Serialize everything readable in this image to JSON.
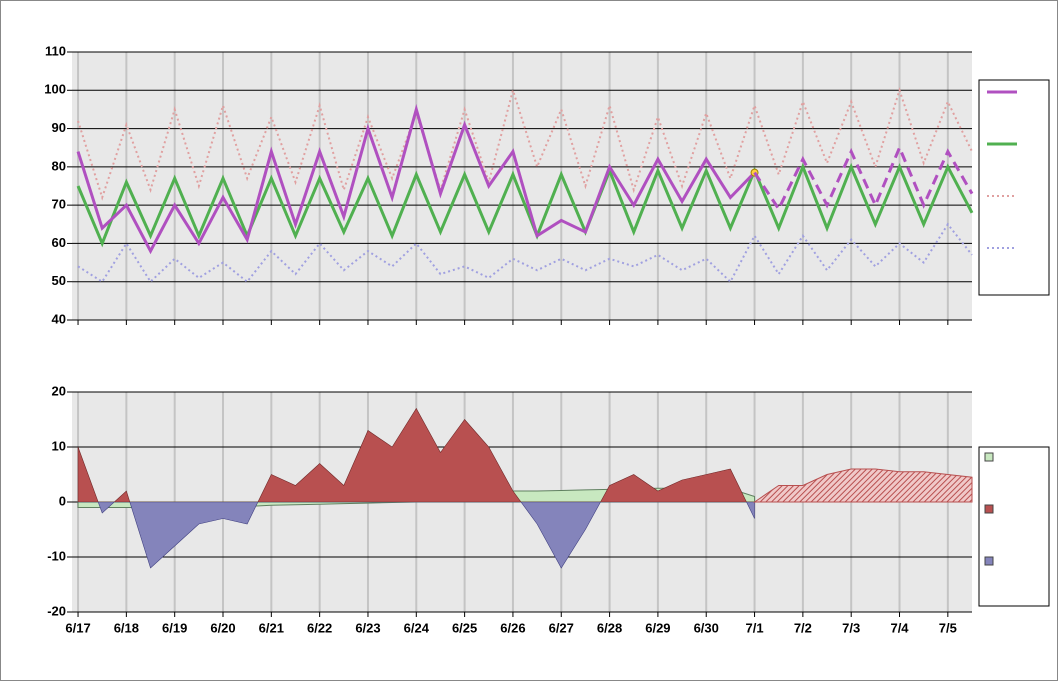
{
  "chart_data": [
    {
      "type": "line",
      "x": [
        0,
        0.5,
        1,
        1.5,
        2,
        2.5,
        3,
        3.5,
        4,
        4.5,
        5,
        5.5,
        6,
        6.5,
        7,
        7.5,
        8,
        8.5,
        9,
        9.5,
        10,
        10.5,
        11,
        11.5,
        12,
        12.5,
        13,
        13.5,
        14,
        14.5,
        15,
        15.5,
        16,
        16.5,
        17,
        17.5,
        18,
        18.5
      ],
      "xlim": [
        -0.125,
        18.5
      ],
      "xticks": [
        0,
        1,
        2,
        3,
        4,
        5,
        6,
        7,
        8,
        9,
        10,
        11,
        12,
        13,
        14,
        15,
        16,
        17,
        18
      ],
      "ylim": [
        40,
        110
      ],
      "yticks": [
        40,
        50,
        60,
        70,
        80,
        90,
        100,
        110
      ],
      "grid": true,
      "series": [
        {
          "color": "#b050c0",
          "style": "solid",
          "width": 3,
          "marker_color": "#ffd040",
          "values": [
            84,
            64,
            70,
            58,
            70,
            60,
            72,
            61,
            84,
            65,
            84,
            67,
            90,
            72,
            95,
            73,
            91,
            75,
            84,
            62,
            66,
            63,
            80,
            70,
            82,
            71,
            82,
            72,
            78.5,
            null,
            null,
            null,
            null,
            null,
            null,
            null,
            null,
            null
          ]
        },
        {
          "color": "#b050c0",
          "style": "dashed",
          "width": 3,
          "values": [
            null,
            null,
            null,
            null,
            null,
            null,
            null,
            null,
            null,
            null,
            null,
            null,
            null,
            null,
            null,
            null,
            null,
            null,
            null,
            null,
            null,
            null,
            null,
            null,
            null,
            null,
            null,
            null,
            78.5,
            69,
            82,
            70,
            84,
            70,
            85,
            70,
            84,
            73
          ]
        },
        {
          "color": "#50b050",
          "style": "solid",
          "width": 3,
          "values": [
            75,
            60,
            76,
            62,
            77,
            62,
            77,
            62,
            77,
            62,
            77,
            63,
            77,
            62,
            78,
            63,
            78,
            63,
            78,
            62,
            78,
            63,
            79,
            63,
            79,
            64,
            79,
            64,
            79,
            64,
            80,
            64,
            80,
            65,
            80,
            65,
            80,
            68
          ]
        },
        {
          "color": "#e0a0a0",
          "style": "dotted",
          "width": 2,
          "values": [
            92,
            72,
            91,
            74,
            95,
            75,
            96,
            77,
            93,
            76,
            96,
            74,
            93,
            77,
            94,
            74,
            95,
            76,
            100,
            80,
            95,
            75,
            96,
            74,
            93,
            75,
            94,
            77,
            96,
            78,
            97,
            81,
            97,
            80,
            100,
            81,
            97,
            84
          ]
        },
        {
          "color": "#a0a0e0",
          "style": "dotted",
          "width": 2,
          "values": [
            54,
            50,
            60,
            50,
            56,
            51,
            55,
            50,
            58,
            52,
            60,
            53,
            58,
            54,
            60,
            52,
            54,
            51,
            56,
            53,
            56,
            53,
            56,
            54,
            57,
            53,
            56,
            50,
            62,
            52,
            62,
            53,
            61,
            54,
            60,
            55,
            65,
            57
          ]
        }
      ]
    },
    {
      "type": "area",
      "x": [
        0,
        0.5,
        1,
        1.5,
        2,
        2.5,
        3,
        3.5,
        4,
        4.5,
        5,
        5.5,
        6,
        6.5,
        7,
        7.5,
        8,
        8.5,
        9,
        9.5,
        10,
        10.5,
        11,
        11.5,
        12,
        12.5,
        13,
        13.5,
        14,
        14.5,
        15,
        15.5,
        16,
        16.5,
        17,
        17.5,
        18,
        18.5
      ],
      "xlim": [
        -0.125,
        18.5
      ],
      "xticks": [
        {
          "value": 0,
          "label": "6/17"
        },
        {
          "value": 1,
          "label": "6/18"
        },
        {
          "value": 2,
          "label": "6/19"
        },
        {
          "value": 3,
          "label": "6/20"
        },
        {
          "value": 4,
          "label": "6/21"
        },
        {
          "value": 5,
          "label": "6/22"
        },
        {
          "value": 6,
          "label": "6/23"
        },
        {
          "value": 7,
          "label": "6/24"
        },
        {
          "value": 8,
          "label": "6/25"
        },
        {
          "value": 9,
          "label": "6/26"
        },
        {
          "value": 10,
          "label": "6/27"
        },
        {
          "value": 11,
          "label": "6/28"
        },
        {
          "value": 12,
          "label": "6/29"
        },
        {
          "value": 13,
          "label": "6/30"
        },
        {
          "value": 14,
          "label": "7/1"
        },
        {
          "value": 15,
          "label": "7/2"
        },
        {
          "value": 16,
          "label": "7/3"
        },
        {
          "value": 17,
          "label": "7/4"
        },
        {
          "value": 18,
          "label": "7/5"
        }
      ],
      "ylim": [
        -20,
        20
      ],
      "yticks": [
        -20,
        -10,
        0,
        10,
        20
      ],
      "grid": true,
      "series": [
        {
          "color": "#c8e8c0",
          "values": [
            -1,
            -1,
            -1,
            -1,
            -1,
            -1,
            -1,
            -0.8,
            -0.6,
            -0.5,
            -0.4,
            -0.3,
            -0.2,
            -0.1,
            0,
            0.5,
            1,
            1.5,
            2,
            2,
            2.1,
            2.2,
            2.3,
            2.4,
            2.5,
            2.5,
            2.5,
            2.4,
            1,
            null,
            null,
            null,
            null,
            null,
            null,
            null,
            null,
            null
          ]
        },
        {
          "color": "#b85050",
          "negative_color": "#8484bb",
          "values": [
            10,
            -2,
            2,
            -12,
            -8,
            -4,
            -3,
            -4,
            5,
            3,
            7,
            3,
            13,
            10,
            17,
            9,
            15,
            10,
            2,
            -4,
            -12,
            -5,
            3,
            5,
            2,
            4,
            5,
            6,
            -3,
            null,
            null,
            null,
            null,
            null,
            null,
            null,
            null,
            null
          ]
        },
        {
          "color": "#b85050",
          "pattern": "hatch",
          "values": [
            null,
            null,
            null,
            null,
            null,
            null,
            null,
            null,
            null,
            null,
            null,
            null,
            null,
            null,
            null,
            null,
            null,
            null,
            null,
            null,
            null,
            null,
            null,
            null,
            null,
            null,
            null,
            null,
            0,
            3,
            3,
            5,
            6,
            6,
            5.5,
            5.5,
            5,
            4.5
          ]
        }
      ]
    }
  ]
}
